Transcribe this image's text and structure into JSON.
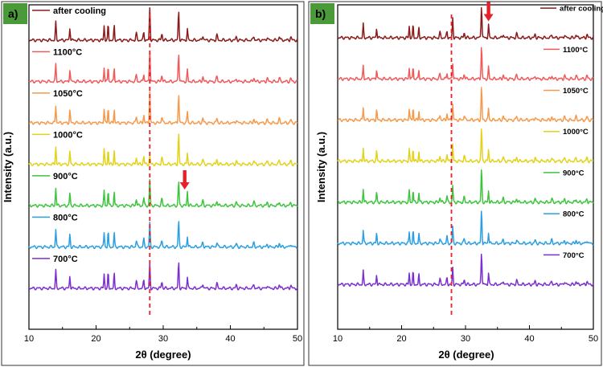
{
  "chart_data": [
    {
      "panel_label": "a)",
      "type": "line",
      "xlabel": "2θ (degree)",
      "ylabel": "Intensity (a.u.)",
      "xlim": [
        10,
        50
      ],
      "x_ticks": [
        10,
        20,
        30,
        40,
        50
      ],
      "y_ticks_shown": false,
      "grid": false,
      "legend_placement": "left, above each curve",
      "reference_line": {
        "x": 28.0,
        "style": "dashed",
        "color": "#e8202a"
      },
      "arrow_annotation": {
        "x": 33.2,
        "series": "900°C",
        "color": "#e8202a",
        "direction": "down"
      },
      "peaks_2theta": [
        14.0,
        16.1,
        21.2,
        21.8,
        22.7,
        26.0,
        27.1,
        28.0,
        29.8,
        32.3,
        33.6,
        35.9,
        38.0,
        40.9,
        43.5,
        45.5,
        47.3,
        49.0
      ],
      "series": [
        {
          "name": "after cooling",
          "color": "#8b1a1a",
          "relative_intensity": [
            0.55,
            0.4,
            0.45,
            0.5,
            0.45,
            0.2,
            0.25,
            1.0,
            0.2,
            0.9,
            0.35,
            0.15,
            0.15,
            0.1,
            0.12,
            0.1,
            0.12,
            0.1
          ]
        },
        {
          "name": "1100°C",
          "color": "#f05a5a",
          "relative_intensity": [
            0.55,
            0.4,
            0.45,
            0.5,
            0.45,
            0.2,
            0.25,
            1.0,
            0.2,
            0.9,
            0.35,
            0.15,
            0.15,
            0.1,
            0.12,
            0.1,
            0.12,
            0.1
          ]
        },
        {
          "name": "1050°C",
          "color": "#f59a4c",
          "relative_intensity": [
            0.55,
            0.4,
            0.45,
            0.5,
            0.45,
            0.2,
            0.25,
            1.0,
            0.2,
            0.9,
            0.35,
            0.15,
            0.15,
            0.1,
            0.12,
            0.1,
            0.12,
            0.1
          ]
        },
        {
          "name": "1000°C",
          "color": "#e3d21a",
          "relative_intensity": [
            0.55,
            0.4,
            0.45,
            0.5,
            0.45,
            0.2,
            0.25,
            0.25,
            0.2,
            0.95,
            0.35,
            0.15,
            0.15,
            0.1,
            0.12,
            0.1,
            0.12,
            0.1
          ]
        },
        {
          "name": "900°C",
          "color": "#3ec43e",
          "relative_intensity": [
            0.55,
            0.4,
            0.45,
            0.5,
            0.45,
            0.2,
            0.25,
            0.8,
            0.2,
            0.75,
            0.45,
            0.15,
            0.15,
            0.1,
            0.12,
            0.1,
            0.12,
            0.1
          ]
        },
        {
          "name": "800°C",
          "color": "#2b9fe0",
          "relative_intensity": [
            0.55,
            0.4,
            0.45,
            0.5,
            0.45,
            0.2,
            0.25,
            0.75,
            0.2,
            0.8,
            0.35,
            0.15,
            0.15,
            0.1,
            0.12,
            0.1,
            0.12,
            0.1
          ]
        },
        {
          "name": "700°C",
          "color": "#7b2fd0",
          "relative_intensity": [
            0.55,
            0.4,
            0.45,
            0.5,
            0.45,
            0.2,
            0.25,
            0.75,
            0.2,
            0.8,
            0.35,
            0.15,
            0.15,
            0.1,
            0.12,
            0.1,
            0.12,
            0.1
          ]
        }
      ]
    },
    {
      "panel_label": "b)",
      "type": "line",
      "xlabel": "2θ (degree)",
      "ylabel": "Intensity (a.u.)",
      "xlim": [
        10,
        50
      ],
      "x_ticks": [
        10,
        20,
        30,
        40,
        50
      ],
      "y_ticks_shown": false,
      "grid": false,
      "legend_placement": "right, above each curve",
      "reference_line": {
        "x": 27.8,
        "style": "dashed",
        "color": "#e8202a"
      },
      "arrow_annotation": {
        "x": 33.6,
        "series": "after cooling",
        "color": "#e8202a",
        "direction": "down"
      },
      "peaks_2theta": [
        14.0,
        16.1,
        21.2,
        21.8,
        22.7,
        26.0,
        27.1,
        28.0,
        29.8,
        32.5,
        33.6,
        35.9,
        38.0,
        40.9,
        43.5,
        45.5,
        47.3,
        49.0
      ],
      "series": [
        {
          "name": "after cooling",
          "color": "#8b1a1a",
          "relative_intensity": [
            0.4,
            0.3,
            0.35,
            0.4,
            0.3,
            0.15,
            0.2,
            0.6,
            0.15,
            1.0,
            0.4,
            0.12,
            0.12,
            0.1,
            0.1,
            0.1,
            0.1,
            0.1
          ]
        },
        {
          "name": "1100°C",
          "color": "#f05a5a",
          "relative_intensity": [
            0.4,
            0.3,
            0.35,
            0.4,
            0.3,
            0.15,
            0.2,
            0.5,
            0.15,
            1.0,
            0.35,
            0.12,
            0.12,
            0.1,
            0.1,
            0.1,
            0.1,
            0.1
          ]
        },
        {
          "name": "1050°C",
          "color": "#f59a4c",
          "relative_intensity": [
            0.4,
            0.3,
            0.35,
            0.4,
            0.3,
            0.15,
            0.2,
            0.5,
            0.15,
            1.0,
            0.35,
            0.12,
            0.12,
            0.1,
            0.1,
            0.1,
            0.1,
            0.1
          ]
        },
        {
          "name": "1000°C",
          "color": "#e3d21a",
          "relative_intensity": [
            0.4,
            0.3,
            0.35,
            0.4,
            0.3,
            0.15,
            0.2,
            0.5,
            0.15,
            1.0,
            0.35,
            0.12,
            0.12,
            0.1,
            0.1,
            0.1,
            0.1,
            0.1
          ]
        },
        {
          "name": "900°C",
          "color": "#3ec43e",
          "relative_intensity": [
            0.4,
            0.3,
            0.35,
            0.4,
            0.3,
            0.15,
            0.2,
            0.5,
            0.15,
            1.0,
            0.35,
            0.12,
            0.12,
            0.1,
            0.1,
            0.1,
            0.1,
            0.1
          ]
        },
        {
          "name": "800°C",
          "color": "#2b9fe0",
          "relative_intensity": [
            0.4,
            0.3,
            0.35,
            0.4,
            0.3,
            0.15,
            0.2,
            0.5,
            0.15,
            1.0,
            0.35,
            0.12,
            0.12,
            0.1,
            0.1,
            0.1,
            0.1,
            0.1
          ]
        },
        {
          "name": "700°C",
          "color": "#7b2fd0",
          "relative_intensity": [
            0.4,
            0.3,
            0.35,
            0.4,
            0.3,
            0.15,
            0.2,
            0.5,
            0.15,
            1.0,
            0.35,
            0.12,
            0.12,
            0.1,
            0.1,
            0.1,
            0.1,
            0.1
          ]
        }
      ]
    }
  ],
  "colors": {
    "panel_tag_bg": "#4a9a3a",
    "reference_line": "#e8202a",
    "axes": "#000000"
  }
}
